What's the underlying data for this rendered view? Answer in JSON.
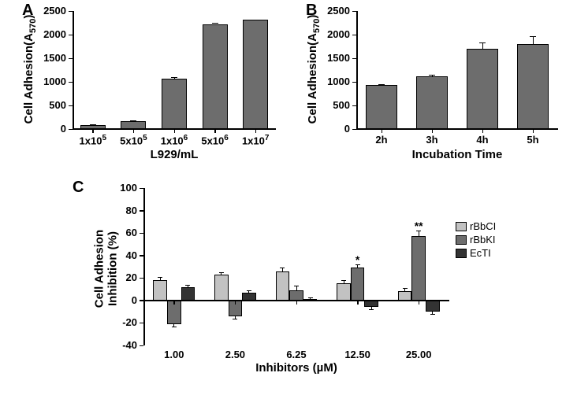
{
  "panelA": {
    "label": "A",
    "type": "bar",
    "y_axis_title": "Cell Adhesion(A",
    "y_axis_sub": "570",
    "y_axis_close": ")",
    "x_axis_title": "L929/mL",
    "ylim": [
      0,
      2500
    ],
    "ytick_step": 500,
    "yticks": [
      "0",
      "500",
      "1000",
      "1500",
      "2000",
      "2500"
    ],
    "categories": [
      "1x10",
      "5x10",
      "1x10",
      "5x10",
      "1x10"
    ],
    "category_exp": [
      "5",
      "5",
      "6",
      "6",
      "7"
    ],
    "values": [
      85,
      170,
      1065,
      2225,
      2310
    ],
    "errors": [
      10,
      15,
      40,
      20,
      15
    ],
    "bar_color": "#6d6d6d",
    "bar_border": "#000000",
    "bar_width": 0.62,
    "axis_color": "#000000",
    "label_fontsize": 15,
    "tick_fontsize": 13
  },
  "panelB": {
    "label": "B",
    "type": "bar",
    "y_axis_title": "Cell Adhesion(A",
    "y_axis_sub": "570",
    "y_axis_close": ")",
    "x_axis_title": "Incubation Time",
    "ylim": [
      0,
      2500
    ],
    "ytick_step": 500,
    "yticks": [
      "0",
      "500",
      "1000",
      "1500",
      "2000",
      "2500"
    ],
    "categories": [
      "2h",
      "3h",
      "4h",
      "5h"
    ],
    "values": [
      930,
      1120,
      1700,
      1800
    ],
    "errors": [
      15,
      30,
      130,
      160
    ],
    "bar_color": "#6d6d6d",
    "bar_border": "#000000",
    "bar_width": 0.62,
    "axis_color": "#000000",
    "label_fontsize": 15,
    "tick_fontsize": 13
  },
  "panelC": {
    "label": "C",
    "type": "grouped-bar",
    "y_axis_title": "Cell Adhesion\nInhibition (%)",
    "x_axis_title": "Inhibitors (µM)",
    "ylim": [
      -40,
      100
    ],
    "yticks": [
      "-40",
      "-20",
      "0",
      "20",
      "40",
      "60",
      "80",
      "100"
    ],
    "categories": [
      "1.00",
      "2.50",
      "6.25",
      "12.50",
      "25.00"
    ],
    "series": [
      {
        "name": "rBbCI",
        "color": "#c2c2c2",
        "values": [
          18,
          23,
          26,
          15,
          8
        ],
        "errors": [
          3,
          2,
          3,
          3,
          3
        ]
      },
      {
        "name": "rBbKI",
        "color": "#6d6d6d",
        "values": [
          -21,
          -14,
          9,
          29,
          57
        ],
        "errors": [
          2,
          2,
          4,
          3,
          5
        ]
      },
      {
        "name": "EcTI",
        "color": "#333333",
        "values": [
          12,
          7,
          1,
          -6,
          -10
        ],
        "errors": [
          2,
          2,
          2,
          2,
          2
        ]
      }
    ],
    "sig_marks": [
      {
        "cat_idx": 3,
        "series_idx": 1,
        "label": "*"
      },
      {
        "cat_idx": 4,
        "series_idx": 1,
        "label": "**"
      }
    ],
    "bar_border": "#000000",
    "axis_color": "#000000",
    "label_fontsize": 15,
    "tick_fontsize": 13
  }
}
